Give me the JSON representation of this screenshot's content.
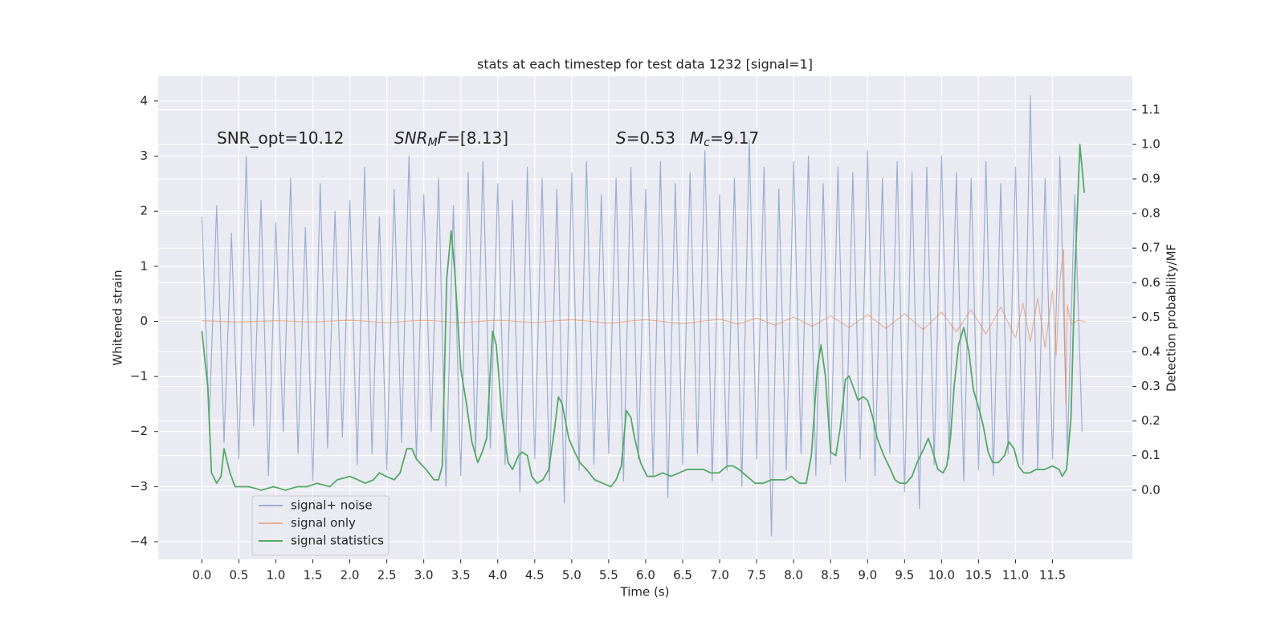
{
  "chart_data": {
    "type": "line",
    "title": "stats at each timestep for test data 1232 [signal=1]",
    "xlabel": "Time (s)",
    "ylabel": "Whitened strain",
    "y2label": "Detection probability/MF",
    "xlim": [
      -0.59,
      12.58
    ],
    "ylim": [
      -4.32,
      4.45
    ],
    "y2lim": [
      -0.2,
      1.197
    ],
    "xticks": [
      {
        "value": 0,
        "label": "0.0"
      },
      {
        "value": 0.5,
        "label": "0.5"
      },
      {
        "value": 1,
        "label": "1.0"
      },
      {
        "value": 1.5,
        "label": "1.5"
      },
      {
        "value": 2,
        "label": "2.0"
      },
      {
        "value": 2.5,
        "label": "2.5"
      },
      {
        "value": 3,
        "label": "3.0"
      },
      {
        "value": 3.5,
        "label": "3.5"
      },
      {
        "value": 4,
        "label": "4.0"
      },
      {
        "value": 4.5,
        "label": "4.5"
      },
      {
        "value": 5,
        "label": "5.0"
      },
      {
        "value": 5.5,
        "label": "5.5"
      },
      {
        "value": 6,
        "label": "6.0"
      },
      {
        "value": 6.5,
        "label": "6.5"
      },
      {
        "value": 7,
        "label": "7.0"
      },
      {
        "value": 7.5,
        "label": "7.5"
      },
      {
        "value": 8,
        "label": "8.0"
      },
      {
        "value": 8.5,
        "label": "8.5"
      },
      {
        "value": 9,
        "label": "9.0"
      },
      {
        "value": 9.5,
        "label": "9.5"
      },
      {
        "value": 10,
        "label": "10.0"
      },
      {
        "value": 10.5,
        "label": "10.5"
      },
      {
        "value": 11,
        "label": "11.0"
      },
      {
        "value": 11.5,
        "label": "11.5"
      }
    ],
    "yticks": [
      {
        "value": -4,
        "label": "−4"
      },
      {
        "value": -3,
        "label": "−3"
      },
      {
        "value": -2,
        "label": "−2"
      },
      {
        "value": -1,
        "label": "−1"
      },
      0,
      1,
      2,
      3,
      4
    ],
    "y2ticks": [
      {
        "value": 0,
        "label": "0.0"
      },
      {
        "value": 0.1,
        "label": "0.1"
      },
      {
        "value": 0.2,
        "label": "0.2"
      },
      {
        "value": 0.3,
        "label": "0.3"
      },
      {
        "value": 0.4,
        "label": "0.4"
      },
      {
        "value": 0.5,
        "label": "0.5"
      },
      {
        "value": 0.6,
        "label": "0.6"
      },
      {
        "value": 0.7,
        "label": "0.7"
      },
      {
        "value": 0.8,
        "label": "0.8"
      },
      {
        "value": 0.9,
        "label": "0.9"
      },
      {
        "value": 1,
        "label": "1.0"
      },
      {
        "value": 1.1,
        "label": "1.1"
      }
    ],
    "grid": true,
    "legend": "lower left",
    "annotations": [
      {
        "parts": [
          "SNR_opt=10.12"
        ]
      },
      {
        "parts": [
          "SNR",
          "M",
          "F",
          "=[8.13]"
        ]
      },
      {
        "parts": [
          "S",
          "=0.53"
        ]
      },
      {
        "parts": [
          "M",
          "c",
          "=9.17"
        ]
      }
    ],
    "series": [
      {
        "name": "signal+ noise",
        "color": "#4c72b0",
        "x": [
          0,
          0.1,
          0.2,
          0.3,
          0.4,
          0.5,
          0.6,
          0.7,
          0.8,
          0.9,
          1,
          1.1,
          1.2,
          1.3,
          1.4,
          1.5,
          1.6,
          1.7,
          1.8,
          1.9,
          2,
          2.1,
          2.2,
          2.3,
          2.4,
          2.5,
          2.6,
          2.7,
          2.8,
          2.9,
          3,
          3.1,
          3.2,
          3.3,
          3.4,
          3.5,
          3.6,
          3.7,
          3.8,
          3.9,
          4,
          4.1,
          4.2,
          4.3,
          4.4,
          4.5,
          4.6,
          4.7,
          4.8,
          4.9,
          5,
          5.1,
          5.2,
          5.3,
          5.4,
          5.5,
          5.6,
          5.7,
          5.8,
          5.9,
          6,
          6.1,
          6.2,
          6.3,
          6.4,
          6.5,
          6.6,
          6.7,
          6.8,
          6.9,
          7,
          7.1,
          7.2,
          7.3,
          7.4,
          7.5,
          7.6,
          7.7,
          7.8,
          7.9,
          8,
          8.1,
          8.2,
          8.3,
          8.4,
          8.5,
          8.6,
          8.7,
          8.8,
          8.9,
          9,
          9.1,
          9.2,
          9.3,
          9.4,
          9.5,
          9.6,
          9.7,
          9.8,
          9.9,
          10,
          10.1,
          10.2,
          10.3,
          10.4,
          10.5,
          10.6,
          10.7,
          10.8,
          10.9,
          11,
          11.1,
          11.2,
          11.3,
          11.4,
          11.5,
          11.6,
          11.7,
          11.8,
          11.9
        ],
        "values": [
          1.9,
          -1.8,
          2.1,
          -2.2,
          1.6,
          -2.5,
          3.0,
          -1.9,
          2.2,
          -2.8,
          1.8,
          -2.0,
          2.6,
          -2.4,
          1.7,
          -2.9,
          2.5,
          -2.3,
          2.0,
          -2.1,
          2.2,
          -2.6,
          2.8,
          -2.4,
          1.9,
          -2.7,
          2.4,
          -2.2,
          3.0,
          -2.5,
          2.3,
          -2.0,
          2.6,
          -3.0,
          2.1,
          -2.8,
          2.7,
          -2.4,
          2.9,
          -2.3,
          2.5,
          -2.6,
          2.2,
          -3.1,
          2.8,
          -2.5,
          2.6,
          -2.9,
          2.4,
          -3.3,
          2.7,
          -2.7,
          2.9,
          -2.6,
          2.3,
          -2.4,
          2.6,
          -2.9,
          2.8,
          -2.5,
          2.4,
          -2.8,
          2.9,
          -3.2,
          2.5,
          -2.6,
          2.7,
          -2.4,
          3.1,
          -2.9,
          2.3,
          -2.7,
          2.6,
          -3.0,
          3.3,
          -2.5,
          2.8,
          -3.9,
          2.4,
          -2.7,
          2.9,
          -2.4,
          3.0,
          -2.8,
          2.5,
          -2.6,
          2.8,
          -2.9,
          2.7,
          -2.5,
          3.1,
          -2.8,
          2.6,
          -2.4,
          2.9,
          -3.1,
          2.7,
          -3.4,
          2.8,
          -2.6,
          3.0,
          -2.5,
          2.7,
          -2.9,
          2.6,
          -2.7,
          2.9,
          -2.8,
          2.5,
          -2.4,
          2.8,
          -2.6,
          4.1,
          -2.7,
          2.6,
          -2.5,
          3.0,
          -2.4,
          2.3,
          -2.0
        ]
      },
      {
        "name": "signal only",
        "color": "#dd8452",
        "x": [
          0,
          0.5,
          1,
          1.5,
          2,
          2.5,
          3,
          3.5,
          4,
          4.5,
          5,
          5.5,
          6,
          6.5,
          7,
          7.25,
          7.5,
          7.75,
          8,
          8.25,
          8.5,
          8.75,
          9,
          9.25,
          9.5,
          9.75,
          10,
          10.2,
          10.4,
          10.6,
          10.8,
          11,
          11.1,
          11.2,
          11.3,
          11.4,
          11.5,
          11.55,
          11.6,
          11.65,
          11.68,
          11.7,
          11.75,
          11.85,
          11.95
        ],
        "values": [
          0.01,
          -0.01,
          0.01,
          -0.01,
          0.02,
          -0.02,
          0.02,
          -0.02,
          0.02,
          -0.02,
          0.03,
          -0.03,
          0.03,
          -0.04,
          0.04,
          -0.05,
          0.06,
          -0.07,
          0.08,
          -0.09,
          0.1,
          -0.11,
          0.12,
          -0.13,
          0.14,
          -0.15,
          0.17,
          -0.19,
          0.21,
          -0.23,
          0.26,
          -0.3,
          0.33,
          -0.37,
          0.42,
          -0.48,
          0.56,
          -0.62,
          0.75,
          1.3,
          -1.5,
          0.3,
          -0.05,
          0.02,
          -0.01
        ]
      },
      {
        "name": "signal statistics",
        "color": "#55a868",
        "axis": "y2",
        "x": [
          0,
          0.08,
          0.13,
          0.2,
          0.26,
          0.3,
          0.38,
          0.45,
          0.53,
          0.64,
          0.8,
          0.97,
          1.13,
          1.29,
          1.42,
          1.56,
          1.73,
          1.83,
          2,
          2.11,
          2.21,
          2.32,
          2.4,
          2.49,
          2.6,
          2.68,
          2.77,
          2.84,
          2.9,
          3.03,
          3.14,
          3.2,
          3.25,
          3.31,
          3.37,
          3.42,
          3.5,
          3.57,
          3.65,
          3.73,
          3.79,
          3.85,
          3.93,
          3.98,
          4.06,
          4.14,
          4.2,
          4.28,
          4.33,
          4.4,
          4.46,
          4.53,
          4.61,
          4.69,
          4.77,
          4.82,
          4.87,
          4.96,
          5.04,
          5.11,
          5.2,
          5.31,
          5.42,
          5.53,
          5.6,
          5.67,
          5.74,
          5.8,
          5.85,
          5.93,
          6.02,
          6.12,
          6.23,
          6.34,
          6.45,
          6.56,
          6.67,
          6.78,
          6.88,
          6.99,
          7.1,
          7.18,
          7.26,
          7.37,
          7.48,
          7.59,
          7.7,
          7.81,
          7.89,
          7.97,
          8.02,
          8.08,
          8.17,
          8.24,
          8.32,
          8.37,
          8.43,
          8.5,
          8.57,
          8.63,
          8.7,
          8.75,
          8.82,
          8.87,
          8.94,
          9,
          9.07,
          9.13,
          9.22,
          9.31,
          9.37,
          9.44,
          9.52,
          9.6,
          9.67,
          9.76,
          9.82,
          9.87,
          9.95,
          10.02,
          10.07,
          10.12,
          10.17,
          10.23,
          10.3,
          10.37,
          10.43,
          10.5,
          10.56,
          10.63,
          10.69,
          10.77,
          10.85,
          10.91,
          10.98,
          11.04,
          11.11,
          11.19,
          11.28,
          11.39,
          11.5,
          11.59,
          11.63,
          11.69,
          11.75,
          11.8,
          11.87,
          11.93
        ],
        "values": [
          0.46,
          0.3,
          0.05,
          0.02,
          0.04,
          0.12,
          0.05,
          0.01,
          0.01,
          0.01,
          0,
          0.01,
          0,
          0.01,
          0.01,
          0.02,
          0.01,
          0.03,
          0.04,
          0.03,
          0.02,
          0.03,
          0.05,
          0.04,
          0.03,
          0.05,
          0.12,
          0.12,
          0.09,
          0.06,
          0.03,
          0.03,
          0.07,
          0.61,
          0.75,
          0.63,
          0.35,
          0.26,
          0.14,
          0.08,
          0.11,
          0.15,
          0.46,
          0.42,
          0.21,
          0.08,
          0.06,
          0.1,
          0.11,
          0.1,
          0.04,
          0.02,
          0.03,
          0.06,
          0.18,
          0.27,
          0.25,
          0.15,
          0.11,
          0.08,
          0.06,
          0.03,
          0.02,
          0.01,
          0.03,
          0.07,
          0.23,
          0.21,
          0.15,
          0.08,
          0.04,
          0.04,
          0.05,
          0.04,
          0.05,
          0.06,
          0.06,
          0.06,
          0.05,
          0.05,
          0.07,
          0.07,
          0.06,
          0.04,
          0.02,
          0.02,
          0.03,
          0.03,
          0.03,
          0.04,
          0.03,
          0.02,
          0.02,
          0.1,
          0.35,
          0.42,
          0.33,
          0.11,
          0.1,
          0.18,
          0.32,
          0.33,
          0.29,
          0.26,
          0.27,
          0.26,
          0.21,
          0.15,
          0.1,
          0.06,
          0.03,
          0.02,
          0.02,
          0.04,
          0.08,
          0.12,
          0.15,
          0.12,
          0.06,
          0.05,
          0.07,
          0.15,
          0.3,
          0.42,
          0.47,
          0.4,
          0.29,
          0.24,
          0.19,
          0.11,
          0.08,
          0.08,
          0.1,
          0.14,
          0.12,
          0.07,
          0.05,
          0.05,
          0.06,
          0.06,
          0.07,
          0.06,
          0.04,
          0.06,
          0.21,
          0.61,
          1.0,
          0.86
        ]
      }
    ]
  }
}
